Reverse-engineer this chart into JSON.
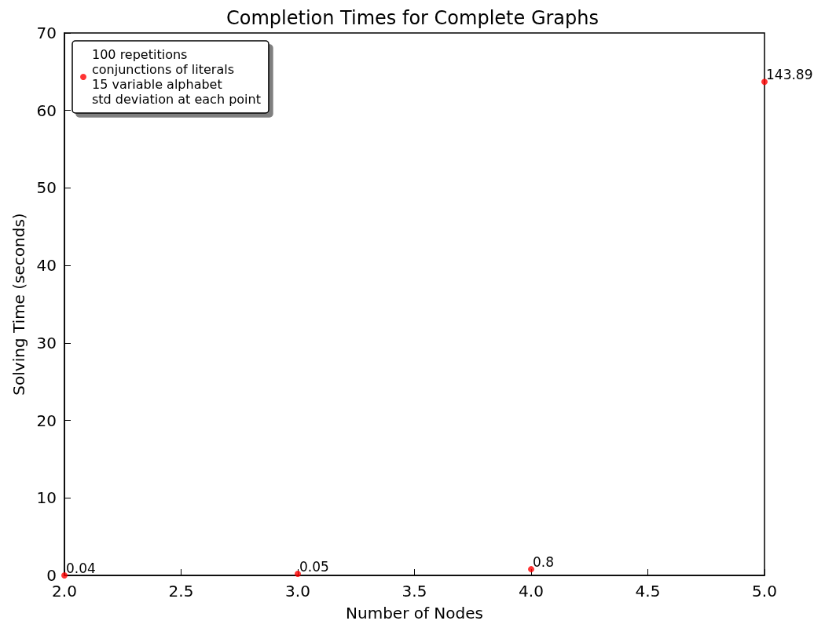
{
  "chart_data": {
    "type": "scatter",
    "title": "Completion Times for Complete Graphs",
    "xlabel": "Number of Nodes",
    "ylabel": "Solving Time (seconds)",
    "x": [
      2,
      3,
      4,
      5
    ],
    "series": [
      {
        "name": "100 repetitions\nconjunctions of literals\n15 variable alphabet\nstd deviation at each point",
        "color": "#ff0000",
        "values": [
          0,
          0.2,
          0.8,
          63.7
        ]
      }
    ],
    "annotations": [
      {
        "text": "0.04",
        "x": 2,
        "y": 0
      },
      {
        "text": "0.05",
        "x": 3,
        "y": 0.2
      },
      {
        "text": "0.8",
        "x": 4,
        "y": 0.8
      },
      {
        "text": "143.89",
        "x": 5,
        "y": 63.7
      }
    ],
    "xlim": [
      2,
      5
    ],
    "xticks": [
      {
        "value": 2,
        "label": "2.0"
      },
      {
        "value": 2.5,
        "label": "2.5"
      },
      {
        "value": 3,
        "label": "3.0"
      },
      {
        "value": 3.5,
        "label": "3.5"
      },
      {
        "value": 4,
        "label": "4.0"
      },
      {
        "value": 4.5,
        "label": "4.5"
      },
      {
        "value": 5,
        "label": "5.0"
      }
    ],
    "ylim": [
      0,
      70
    ],
    "yticks": [
      0,
      10,
      20,
      30,
      40,
      50,
      60,
      70
    ],
    "grid": false,
    "legend": "top left",
    "marker": "circle"
  }
}
